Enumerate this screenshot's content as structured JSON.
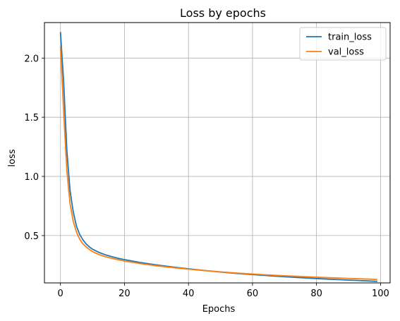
{
  "chart_data": {
    "type": "line",
    "title": "Loss by epochs",
    "xlabel": "Epochs",
    "ylabel": "loss",
    "xlim": [
      -5,
      103
    ],
    "ylim": [
      0.1,
      2.3
    ],
    "xticks": [
      0,
      20,
      40,
      60,
      80,
      100
    ],
    "yticks": [
      0.5,
      1.0,
      1.5,
      2.0
    ],
    "xtick_labels": [
      "0",
      "20",
      "40",
      "60",
      "80",
      "100"
    ],
    "ytick_labels": [
      "0.5",
      "1.0",
      "1.5",
      "2.0"
    ],
    "grid": true,
    "legend": "top-right",
    "series": [
      {
        "name": "train_loss",
        "color": "#1f77b4",
        "x": [
          0,
          1,
          2,
          3,
          4,
          5,
          6,
          7,
          8,
          9,
          10,
          12,
          14,
          16,
          18,
          20,
          25,
          30,
          35,
          40,
          45,
          50,
          55,
          60,
          65,
          70,
          75,
          80,
          85,
          90,
          95,
          99
        ],
        "y": [
          2.22,
          1.8,
          1.22,
          0.88,
          0.7,
          0.58,
          0.51,
          0.465,
          0.43,
          0.405,
          0.385,
          0.358,
          0.338,
          0.322,
          0.308,
          0.297,
          0.272,
          0.252,
          0.235,
          0.219,
          0.205,
          0.192,
          0.18,
          0.17,
          0.161,
          0.152,
          0.144,
          0.137,
          0.13,
          0.124,
          0.118,
          0.113
        ]
      },
      {
        "name": "val_loss",
        "color": "#ff7f0e",
        "x": [
          0,
          1,
          2,
          3,
          4,
          5,
          6,
          7,
          8,
          9,
          10,
          12,
          14,
          16,
          18,
          20,
          25,
          30,
          35,
          40,
          45,
          50,
          55,
          60,
          65,
          70,
          75,
          80,
          85,
          90,
          95,
          99
        ],
        "y": [
          2.1,
          1.55,
          1.05,
          0.77,
          0.62,
          0.53,
          0.47,
          0.43,
          0.405,
          0.383,
          0.365,
          0.34,
          0.322,
          0.308,
          0.296,
          0.285,
          0.263,
          0.245,
          0.23,
          0.216,
          0.204,
          0.193,
          0.183,
          0.175,
          0.167,
          0.16,
          0.154,
          0.148,
          0.143,
          0.138,
          0.133,
          0.129
        ]
      }
    ]
  }
}
